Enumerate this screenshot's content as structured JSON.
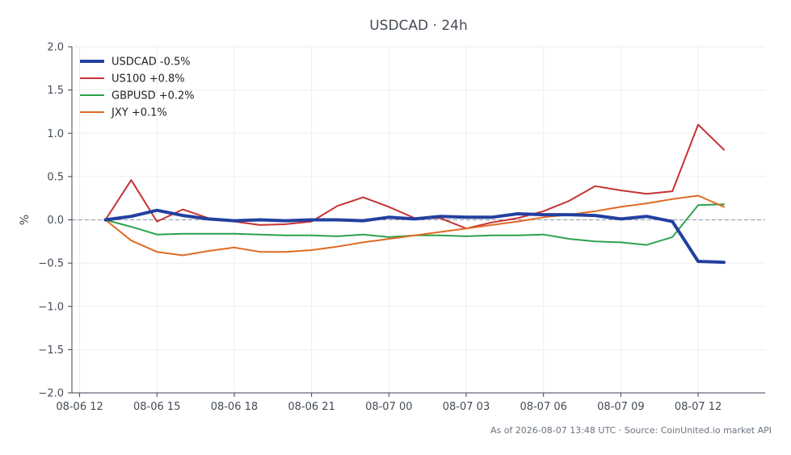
{
  "chart_data": {
    "type": "line",
    "title": "USDCAD · 24h",
    "ylabel": "%",
    "xlabel": "",
    "ylim": [
      -2.0,
      2.0
    ],
    "yticks": [
      "2.0",
      "1.5",
      "1.0",
      "0.5",
      "0.0",
      "−0.5",
      "−1.0",
      "−1.5",
      "−2.0"
    ],
    "ytick_values": [
      2.0,
      1.5,
      1.0,
      0.5,
      0.0,
      -0.5,
      -1.0,
      -1.5,
      -2.0
    ],
    "xticks": [
      "08-06 12",
      "08-06 15",
      "08-06 18",
      "08-06 21",
      "08-07 00",
      "08-07 03",
      "08-07 06",
      "08-07 09",
      "08-07 12"
    ],
    "xtick_hours": [
      0,
      3,
      6,
      9,
      12,
      15,
      18,
      21,
      24
    ],
    "x_hours_range": [
      -0.3,
      26.6
    ],
    "grid": true,
    "legend_position": "top-left",
    "x": [
      1,
      2,
      3,
      4,
      5,
      6,
      7,
      8,
      9,
      10,
      11,
      12,
      13,
      14,
      15,
      16,
      17,
      18,
      19,
      20,
      21,
      22,
      23,
      24,
      25
    ],
    "series": [
      {
        "name": "USDCAD -0.5%",
        "color": "#2340a0",
        "width": 4,
        "values": [
          0.0,
          0.04,
          0.11,
          0.05,
          0.01,
          -0.01,
          0.0,
          -0.01,
          0.0,
          0.0,
          -0.01,
          0.03,
          0.01,
          0.04,
          0.03,
          0.03,
          0.07,
          0.06,
          0.06,
          0.05,
          0.01,
          0.04,
          -0.02,
          -0.48,
          -0.49
        ]
      },
      {
        "name": "US100 +0.8%",
        "color": "#c73232",
        "width": 2,
        "values": [
          0.0,
          0.46,
          -0.02,
          0.12,
          0.02,
          -0.02,
          -0.06,
          -0.05,
          -0.02,
          0.16,
          0.26,
          0.15,
          0.02,
          0.02,
          -0.1,
          -0.03,
          0.02,
          0.1,
          0.22,
          0.39,
          0.34,
          0.3,
          0.33,
          1.1,
          0.81
        ]
      },
      {
        "name": "GBPUSD +0.2%",
        "color": "#2ca24c",
        "width": 2,
        "values": [
          0.0,
          -0.08,
          -0.17,
          -0.16,
          -0.16,
          -0.16,
          -0.17,
          -0.18,
          -0.18,
          -0.19,
          -0.17,
          -0.2,
          -0.18,
          -0.18,
          -0.19,
          -0.18,
          -0.18,
          -0.17,
          -0.22,
          -0.25,
          -0.26,
          -0.29,
          -0.2,
          0.17,
          0.18
        ]
      },
      {
        "name": "JXY +0.1%",
        "color": "#e06a22",
        "width": 2,
        "values": [
          0.0,
          -0.24,
          -0.37,
          -0.41,
          -0.36,
          -0.32,
          -0.37,
          -0.37,
          -0.35,
          -0.31,
          -0.26,
          -0.22,
          -0.18,
          -0.14,
          -0.1,
          -0.06,
          -0.02,
          0.03,
          0.06,
          0.1,
          0.15,
          0.19,
          0.24,
          0.28,
          0.15
        ]
      }
    ]
  },
  "footer": "As of 2026-08-07 13:48 UTC · Source: CoinUnited.io market API"
}
